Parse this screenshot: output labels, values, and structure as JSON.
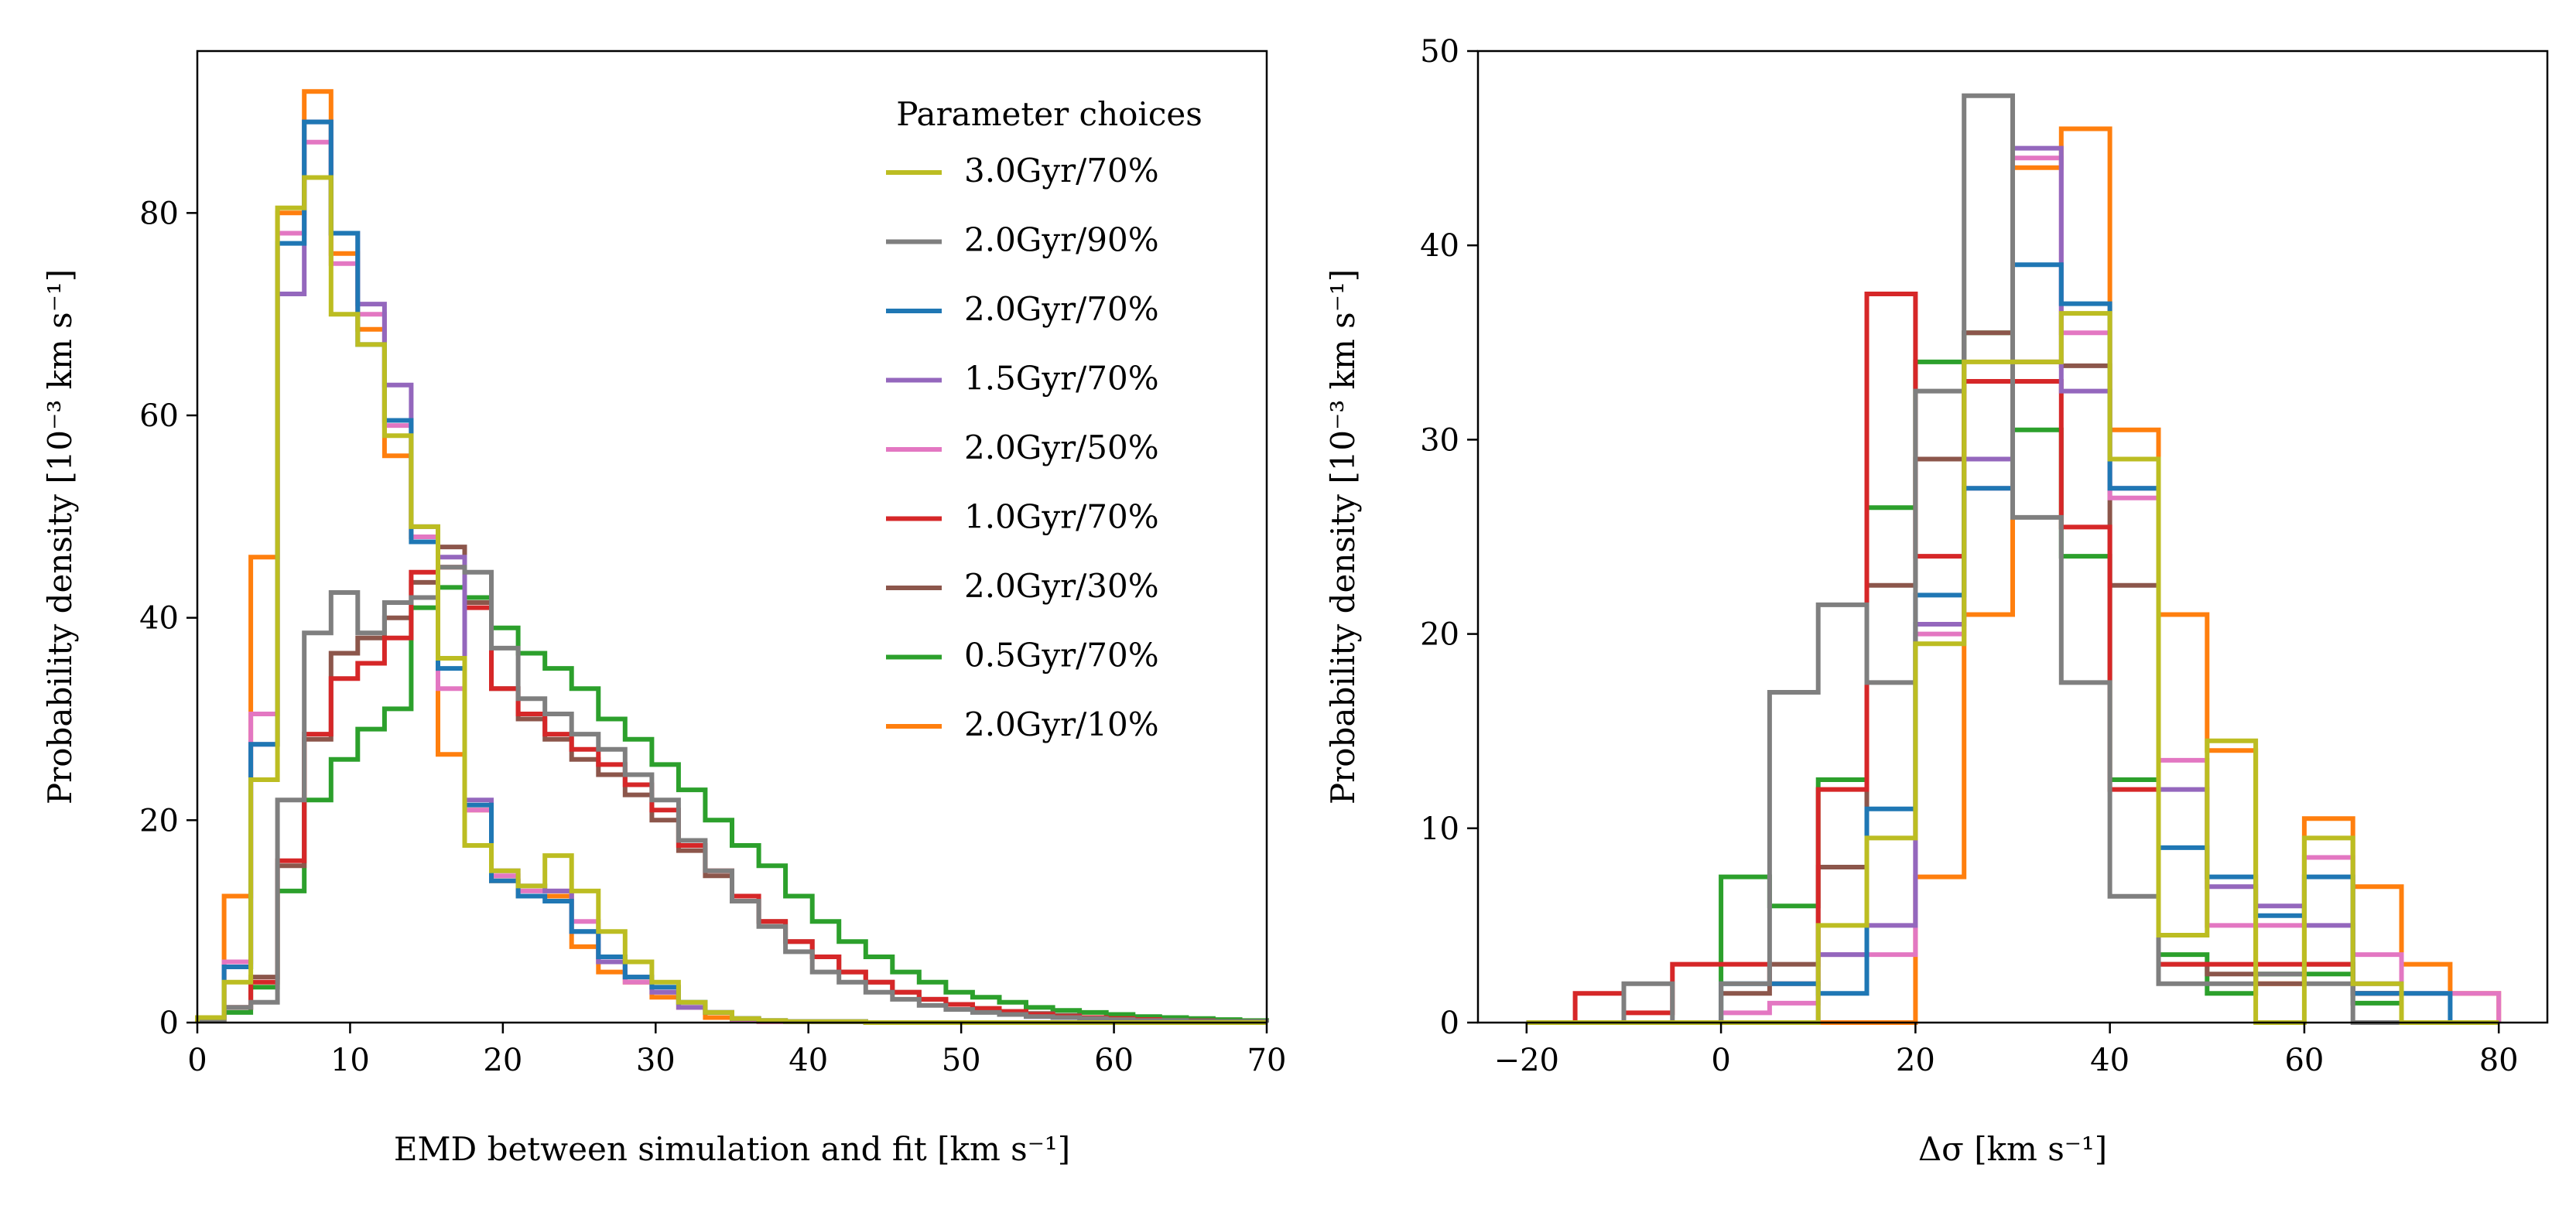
{
  "chart_data": [
    {
      "type": "step-histogram",
      "xlabel": "EMD between simulation and fit [km s⁻¹]",
      "ylabel": "Probability density [10⁻³ km s⁻¹]",
      "xlim": [
        0,
        70
      ],
      "ylim": [
        0,
        96
      ],
      "xticks": [
        0,
        10,
        20,
        30,
        40,
        50,
        60,
        70
      ],
      "yticks": [
        0,
        20,
        40,
        60,
        80
      ],
      "legend": {
        "title": "Parameter choices",
        "placement": "upper-right"
      },
      "bin_edges": [
        0,
        1.75,
        3.5,
        5.25,
        7,
        8.75,
        10.5,
        12.25,
        14,
        15.75,
        17.5,
        19.25,
        21,
        22.75,
        24.5,
        26.25,
        28,
        29.75,
        31.5,
        33.25,
        35,
        36.75,
        38.5,
        40.25,
        42,
        43.75,
        45.5,
        47.25,
        49,
        50.75,
        52.5,
        54.25,
        56,
        57.75,
        59.5,
        61.25,
        63,
        64.75,
        66.5,
        68.25,
        70
      ],
      "series": [
        {
          "name": "2.0Gyr/10%",
          "color": "#ff7f0e",
          "values": [
            0.5,
            12.5,
            46,
            80,
            92,
            76,
            68.5,
            56,
            48,
            26.5,
            21,
            14,
            12.5,
            12.5,
            7.5,
            5,
            4,
            2.5,
            1.5,
            0.5,
            0.2,
            0.1,
            0.1,
            0.1,
            0.1,
            0,
            0,
            0,
            0,
            0,
            0,
            0,
            0,
            0,
            0,
            0,
            0,
            0,
            0,
            0
          ]
        },
        {
          "name": "0.5Gyr/70%",
          "color": "#2ca02c",
          "values": [
            0.2,
            1,
            3.5,
            13,
            22,
            26,
            29,
            31,
            41,
            43,
            42,
            39,
            36.5,
            35,
            33,
            30,
            28,
            25.5,
            23,
            20,
            17.5,
            15.5,
            12.5,
            10,
            8,
            6.5,
            5,
            4,
            3,
            2.5,
            2,
            1.5,
            1.2,
            1,
            0.8,
            0.6,
            0.5,
            0.4,
            0.3,
            0.2
          ]
        },
        {
          "name": "2.0Gyr/30%",
          "color": "#8c564b",
          "values": [
            0.2,
            1.5,
            4.5,
            15.5,
            28,
            36.5,
            38,
            40,
            43.5,
            47,
            41.5,
            33,
            30,
            28,
            26,
            24.5,
            22.5,
            20,
            17,
            14.5,
            12,
            10,
            8,
            6.5,
            5,
            4,
            3,
            2.3,
            1.8,
            1.4,
            1.1,
            0.9,
            0.7,
            0.5,
            0.4,
            0.3,
            0.2,
            0.2,
            0.1,
            0.1
          ]
        },
        {
          "name": "1.0Gyr/70%",
          "color": "#d62728",
          "values": [
            0.2,
            1.5,
            4,
            16,
            28.5,
            34,
            35.5,
            38,
            44.5,
            45,
            41,
            33,
            30.5,
            28.5,
            27,
            25.5,
            23.5,
            21,
            17.5,
            15,
            12.5,
            10,
            8,
            6.5,
            5,
            4,
            3,
            2.3,
            1.8,
            1.4,
            1.1,
            0.8,
            0.6,
            0.5,
            0.4,
            0.3,
            0.2,
            0.1,
            0.1,
            0.1
          ]
        },
        {
          "name": "2.0Gyr/50%",
          "color": "#e377c2",
          "values": [
            0.5,
            6,
            30.5,
            78,
            87,
            75,
            70,
            59,
            48,
            33,
            21,
            14.5,
            13,
            13,
            10,
            6,
            4,
            3,
            1.5,
            1,
            0.3,
            0.1,
            0.1,
            0.1,
            0.1,
            0,
            0,
            0,
            0,
            0,
            0,
            0,
            0,
            0,
            0,
            0,
            0,
            0,
            0,
            0
          ]
        },
        {
          "name": "1.5Gyr/70%",
          "color": "#9467bd",
          "values": [
            0.5,
            5.5,
            27.5,
            72,
            89,
            78,
            71,
            63,
            49,
            46,
            22,
            15,
            13.5,
            13,
            9,
            6,
            4.5,
            3,
            1.5,
            1,
            0.4,
            0.2,
            0.1,
            0.1,
            0.1,
            0,
            0,
            0,
            0,
            0,
            0,
            0,
            0,
            0,
            0,
            0,
            0,
            0,
            0,
            0
          ]
        },
        {
          "name": "2.0Gyr/70%",
          "color": "#1f77b4",
          "values": [
            0.5,
            5.5,
            27.5,
            77,
            89,
            78,
            67,
            59.5,
            47.5,
            35,
            21.5,
            14,
            12.5,
            12,
            9,
            6.5,
            4.5,
            3.5,
            2,
            1,
            0.4,
            0.2,
            0.1,
            0.1,
            0.1,
            0,
            0,
            0,
            0,
            0,
            0,
            0,
            0,
            0,
            0,
            0,
            0,
            0,
            0,
            0
          ]
        },
        {
          "name": "2.0Gyr/90%",
          "color": "#7f7f7f",
          "values": [
            0.2,
            1.5,
            2,
            22,
            38.5,
            42.5,
            38.5,
            41.5,
            42,
            45,
            44.5,
            37,
            32,
            30.5,
            28.5,
            27,
            24.5,
            22,
            18,
            15,
            12,
            9.5,
            7,
            5,
            4,
            3,
            2.3,
            1.7,
            1.3,
            1,
            0.8,
            0.6,
            0.5,
            0.4,
            0.3,
            0.2,
            0.2,
            0.1,
            0.1,
            0.1
          ]
        },
        {
          "name": "3.0Gyr/70%",
          "color": "#bcbd22",
          "values": [
            0.5,
            4,
            24,
            80.5,
            83.5,
            70,
            67,
            58,
            49,
            36,
            17.5,
            15,
            13.5,
            16.5,
            13,
            9,
            6,
            4,
            2,
            1,
            0.4,
            0.2,
            0.1,
            0.1,
            0.1,
            0,
            0,
            0,
            0,
            0,
            0,
            0,
            0,
            0,
            0,
            0,
            0,
            0,
            0,
            0
          ]
        }
      ]
    },
    {
      "type": "step-histogram",
      "xlabel": "Δσ [km s⁻¹]",
      "ylabel": "Probability density [10⁻³ km s⁻¹]",
      "xlim": [
        -25,
        85
      ],
      "ylim": [
        0,
        50
      ],
      "xticks": [
        -20,
        0,
        20,
        40,
        60,
        80
      ],
      "xtick_labels": [
        "−20",
        "0",
        "20",
        "40",
        "60",
        "80"
      ],
      "yticks": [
        0,
        10,
        20,
        30,
        40,
        50
      ],
      "bin_edges": [
        -20,
        -15,
        -10,
        -5,
        0,
        5,
        10,
        15,
        20,
        25,
        30,
        35,
        40,
        45,
        50,
        55,
        60,
        65,
        70,
        75,
        80
      ],
      "series": [
        {
          "name": "2.0Gyr/10%",
          "color": "#ff7f0e",
          "values": [
            0,
            0,
            0,
            0,
            0,
            0,
            0,
            0,
            7.5,
            21,
            44,
            46,
            30.5,
            21,
            14,
            2,
            10.5,
            7,
            3,
            1.5
          ]
        },
        {
          "name": "0.5Gyr/70%",
          "color": "#2ca02c",
          "values": [
            0,
            0,
            0,
            0,
            7.5,
            6,
            12.5,
            26.5,
            34,
            35.5,
            30.5,
            24,
            12.5,
            3.5,
            1.5,
            2.5,
            2.5,
            1,
            0,
            0
          ]
        },
        {
          "name": "2.0Gyr/30%",
          "color": "#8c564b",
          "values": [
            0,
            0,
            0,
            0,
            1.5,
            3,
            8,
            22.5,
            29,
            35.5,
            34,
            33.8,
            22.5,
            3,
            2.5,
            2,
            3,
            1.5,
            0,
            0
          ]
        },
        {
          "name": "1.0Gyr/70%",
          "color": "#d62728",
          "values": [
            0,
            1.5,
            0.5,
            3,
            3,
            2,
            12,
            37.5,
            24,
            33,
            33,
            25.5,
            12,
            3,
            3,
            3,
            3,
            1.5,
            0,
            0
          ]
        },
        {
          "name": "2.0Gyr/50%",
          "color": "#e377c2",
          "values": [
            0,
            0,
            0,
            0,
            0.5,
            1,
            3.5,
            3.5,
            20,
            27.5,
            44.5,
            35.5,
            27,
            13.5,
            5,
            5,
            8.5,
            3.5,
            1.5,
            1.5
          ]
        },
        {
          "name": "1.5Gyr/70%",
          "color": "#9467bd",
          "values": [
            0,
            0,
            0,
            0,
            0,
            0,
            3.5,
            5,
            20.5,
            29,
            45,
            32.5,
            27.5,
            12,
            7,
            6,
            5,
            2,
            0,
            0
          ]
        },
        {
          "name": "2.0Gyr/70%",
          "color": "#1f77b4",
          "values": [
            0,
            0,
            0,
            0,
            2,
            2,
            1.5,
            11,
            22,
            27.5,
            39,
            37,
            27.5,
            9,
            7.5,
            5.5,
            7.5,
            1.5,
            1.5,
            0
          ]
        },
        {
          "name": "2.0Gyr/90%",
          "color": "#7f7f7f",
          "values": [
            0,
            0,
            2,
            0,
            2,
            17,
            21.5,
            17.5,
            32.5,
            47.7,
            26,
            17.5,
            6.5,
            2,
            2,
            2.5,
            2,
            0,
            0,
            0
          ]
        },
        {
          "name": "3.0Gyr/70%",
          "color": "#bcbd22",
          "values": [
            0,
            0,
            0,
            0,
            0,
            0,
            5,
            9.5,
            19.5,
            34,
            34,
            36.5,
            29,
            4.5,
            14.5,
            0,
            9.5,
            2,
            0,
            0
          ]
        }
      ]
    }
  ],
  "legend_entries": [
    {
      "label": "3.0Gyr/70%",
      "color": "#bcbd22"
    },
    {
      "label": "2.0Gyr/90%",
      "color": "#7f7f7f"
    },
    {
      "label": "2.0Gyr/70%",
      "color": "#1f77b4"
    },
    {
      "label": "1.5Gyr/70%",
      "color": "#9467bd"
    },
    {
      "label": "2.0Gyr/50%",
      "color": "#e377c2"
    },
    {
      "label": "1.0Gyr/70%",
      "color": "#d62728"
    },
    {
      "label": "2.0Gyr/30%",
      "color": "#8c564b"
    },
    {
      "label": "0.5Gyr/70%",
      "color": "#2ca02c"
    },
    {
      "label": "2.0Gyr/10%",
      "color": "#ff7f0e"
    }
  ]
}
